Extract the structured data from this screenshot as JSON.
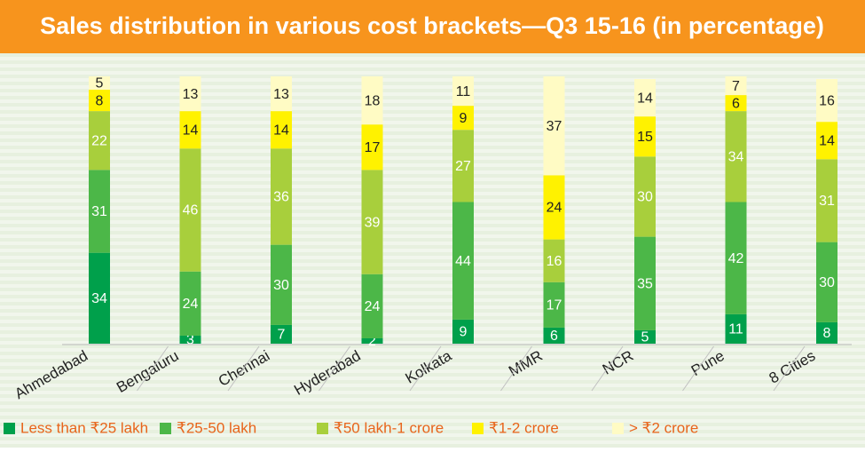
{
  "chart_data": {
    "type": "stacked_bar",
    "title": "Sales distribution in various cost brackets—Q3 15-16 (in percentage)",
    "categories": [
      "Ahmedabad",
      "Bengaluru",
      "Chennai",
      "Hyderabad",
      "Kolkata",
      "MMR",
      "NCR",
      "Pune",
      "8 Cities"
    ],
    "series": [
      {
        "name": "Less than ₹25 lakh",
        "color": "#00a04b",
        "label_color": "#ffffff",
        "values": [
          34,
          3,
          7,
          2,
          9,
          6,
          5,
          11,
          8
        ]
      },
      {
        "name": "₹25-50 lakh",
        "color": "#4cb748",
        "label_color": "#ffffff",
        "values": [
          31,
          24,
          30,
          24,
          44,
          17,
          35,
          42,
          30
        ]
      },
      {
        "name": "₹50 lakh-1 crore",
        "color": "#a8cf3c",
        "label_color": "#ffffff",
        "values": [
          22,
          46,
          36,
          39,
          27,
          16,
          30,
          34,
          31
        ]
      },
      {
        "name": "₹1-2 crore",
        "color": "#fff200",
        "label_color": "#222222",
        "values": [
          8,
          14,
          14,
          17,
          9,
          24,
          15,
          6,
          14
        ]
      },
      {
        "name": "> ₹2 crore",
        "color": "#fffbc4",
        "label_color": "#222222",
        "values": [
          5,
          13,
          13,
          18,
          11,
          37,
          14,
          7,
          16
        ]
      }
    ]
  }
}
